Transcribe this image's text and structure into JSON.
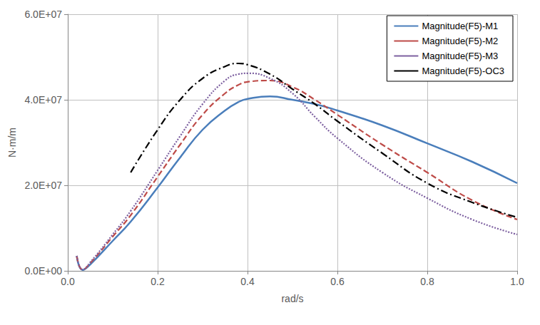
{
  "chart_data": {
    "type": "line",
    "x_label": "rad/s",
    "y_label": "N·m/m",
    "x": [
      0.02,
      0.033,
      0.05,
      0.1,
      0.14,
      0.2,
      0.25,
      0.3,
      0.35,
      0.38,
      0.4,
      0.45,
      0.5,
      0.55,
      0.6,
      0.7,
      0.8,
      0.9,
      1.0
    ],
    "series": [
      {
        "name": "Magnitude(F5)-M1",
        "color": "#4a7ebb",
        "line_style": "solid",
        "values": [
          3500000,
          200000,
          1500000,
          7000000,
          11500000,
          19500000,
          26500000,
          33000000,
          37500000,
          39500000,
          40200000,
          40800000,
          40000000,
          39000000,
          37500000,
          34000000,
          29800000,
          25500000,
          20500000
        ]
      },
      {
        "name": "Magnitude(F5)-M2",
        "color": "#be4b48",
        "line_style": "dashed",
        "values": [
          3500000,
          300000,
          1800000,
          8000000,
          13000000,
          22000000,
          29500000,
          36500000,
          41500000,
          43500000,
          44200000,
          44500000,
          43000000,
          40000000,
          36500000,
          29500000,
          23000000,
          16500000,
          12000000
        ]
      },
      {
        "name": "Magnitude(F5)-M3",
        "color": "#7d60a0",
        "line_style": "dotted",
        "values": [
          3500000,
          300000,
          2000000,
          8500000,
          14000000,
          23500000,
          31500000,
          39000000,
          44500000,
          46000000,
          46200000,
          45000000,
          41500000,
          36000000,
          31000000,
          23000000,
          17000000,
          12000000,
          8500000
        ]
      },
      {
        "name": "Magnitude(F5)-OC3",
        "color": "#000000",
        "line_style": "dashdot",
        "values": [
          null,
          null,
          null,
          null,
          23000000,
          33000000,
          40000000,
          45000000,
          47800000,
          48500000,
          48200000,
          46000000,
          42500000,
          39000000,
          35000000,
          27500000,
          20500000,
          16000000,
          12500000
        ]
      }
    ],
    "xlim": [
      0,
      1
    ],
    "xticks": [
      {
        "value": 0,
        "label": "0.0"
      },
      {
        "value": 0.2,
        "label": "0.2"
      },
      {
        "value": 0.4,
        "label": "0.4"
      },
      {
        "value": 0.6,
        "label": "0.6"
      },
      {
        "value": 0.8,
        "label": "0.8"
      },
      {
        "value": 1,
        "label": "1.0"
      }
    ],
    "ylim": [
      0,
      60000000
    ],
    "yticks": [
      {
        "value": 0,
        "label": "0.0E+00"
      },
      {
        "value": 20000000,
        "label": "2.0E+07"
      },
      {
        "value": 40000000,
        "label": "4.0E+07"
      },
      {
        "value": 60000000,
        "label": "6.0E+07"
      }
    ],
    "grid": true,
    "legend": "upper right"
  }
}
